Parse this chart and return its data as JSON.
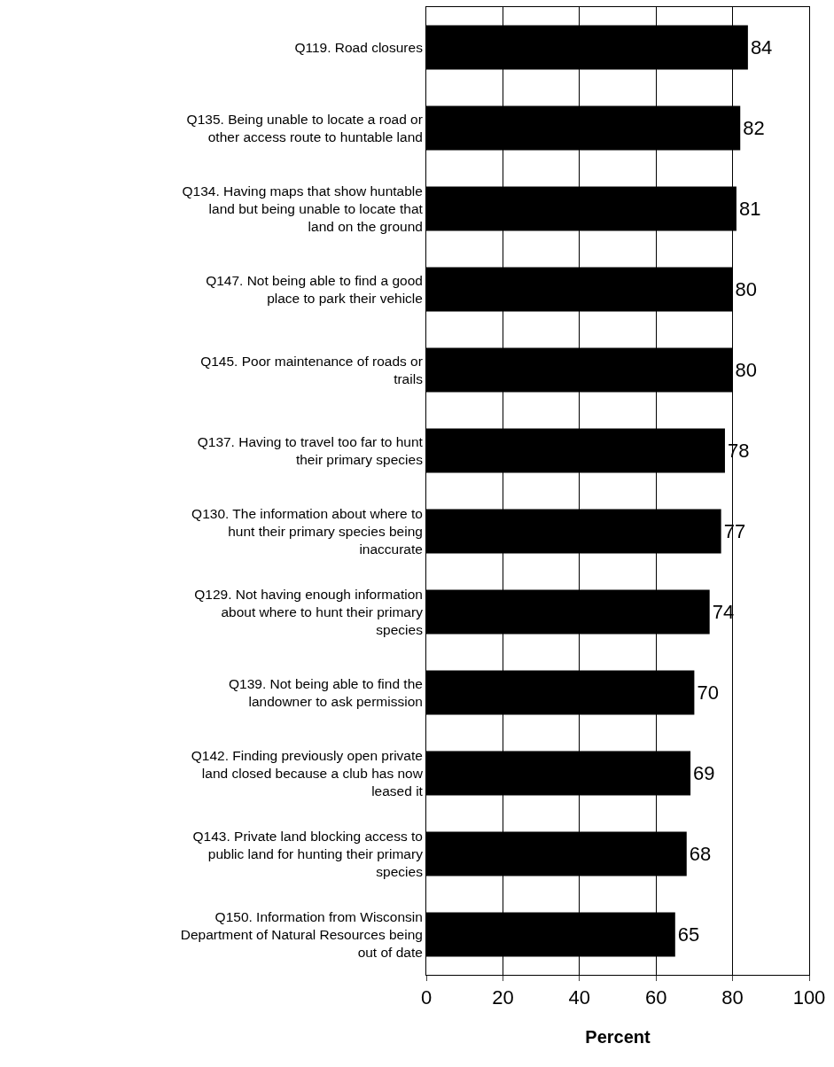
{
  "chart_data": {
    "type": "bar",
    "orientation": "horizontal",
    "xlabel": "Percent",
    "categories": [
      "Q119. Road closures",
      "Q135. Being unable to locate a road or other access route to huntable land",
      "Q134. Having maps that show huntable land but being unable to locate that land on the ground",
      "Q147. Not being able to find a good place to park their vehicle",
      "Q145. Poor maintenance of roads or trails",
      "Q137. Having to travel too far to hunt their primary species",
      "Q130. The information about where to hunt their primary species being inaccurate",
      "Q129. Not having enough information about where to hunt their primary species",
      "Q139. Not being able to find the landowner to ask permission",
      "Q142. Finding previously open private land closed because a club has now leased it",
      "Q143. Private land blocking access to public land for hunting their primary species",
      "Q150. Information from Wisconsin Department of Natural Resources being out of date"
    ],
    "values": [
      84,
      82,
      81,
      80,
      80,
      78,
      77,
      74,
      70,
      69,
      68,
      65
    ],
    "color": "#000000",
    "data_labels": true,
    "xlim": [
      0,
      100
    ],
    "xticks": [
      0,
      20,
      40,
      60,
      80,
      100
    ],
    "grid": "x",
    "legend": false
  }
}
